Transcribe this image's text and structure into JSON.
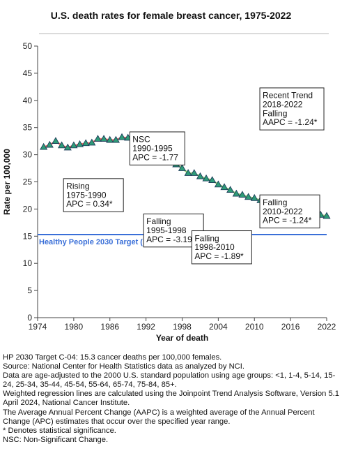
{
  "title": "U.S. death rates for female breast cancer, 1975-2022",
  "chart_data": {
    "type": "line",
    "title": "U.S. death rates for female breast cancer, 1975-2022",
    "xlabel": "Year of death",
    "ylabel": "Rate per 100,000",
    "xlim": [
      1974,
      2022
    ],
    "ylim": [
      0,
      50
    ],
    "xticks": [
      1974,
      1980,
      1986,
      1992,
      1998,
      2004,
      2010,
      2016,
      2022
    ],
    "yticks": [
      0,
      5,
      10,
      15,
      20,
      25,
      30,
      35,
      40,
      45,
      50
    ],
    "grid": false,
    "colors": {
      "marker_fill": "#2e9c78",
      "marker_stroke": "#1e3c5a",
      "target_line": "#3a6fd8",
      "segment_rising": "#e8675a",
      "segment_nsc": "#d8a3c8",
      "segment_falling": "#8ccf6a"
    },
    "series": [
      {
        "x": [
          1975,
          1976,
          1977,
          1978,
          1979,
          1980,
          1981,
          1982,
          1983,
          1984,
          1985,
          1986,
          1987,
          1988,
          1989,
          1990,
          1991,
          1992,
          1993,
          1994,
          1995,
          1996,
          1997,
          1998,
          1999,
          2000,
          2001,
          2002,
          2003,
          2004,
          2005,
          2006,
          2007,
          2008,
          2009,
          2010,
          2011,
          2012,
          2013,
          2014,
          2015,
          2016,
          2017,
          2018,
          2019,
          2020,
          2021,
          2022
        ],
        "values": [
          31.4,
          31.8,
          32.5,
          31.7,
          31.3,
          31.7,
          31.9,
          32.1,
          32.2,
          32.9,
          32.9,
          32.7,
          32.7,
          33.2,
          33.1,
          33.1,
          32.7,
          32.0,
          31.4,
          30.9,
          30.4,
          29.5,
          28.2,
          27.5,
          26.6,
          26.6,
          26.0,
          25.6,
          25.3,
          24.5,
          24.0,
          23.5,
          22.8,
          22.6,
          22.2,
          22.0,
          21.6,
          21.3,
          20.8,
          20.6,
          20.3,
          20.1,
          19.9,
          19.6,
          19.3,
          19.1,
          18.9,
          18.7
        ]
      }
    ],
    "trend_segments": [
      {
        "start": 1975,
        "end": 1990,
        "color": "#e8675a"
      },
      {
        "start": 1990,
        "end": 1995,
        "color": "#d8a3c8"
      },
      {
        "start": 1995,
        "end": 2022,
        "color": "#8ccf6a"
      }
    ],
    "target_line": {
      "value": 15.3,
      "label": "Healthy People 2030 Target (15.3)"
    },
    "annotations": [
      {
        "lines": [
          "Rising",
          "1975-1990",
          "APC =  0.34*"
        ],
        "year": 1978.3,
        "rate": 25.6
      },
      {
        "lines": [
          "NSC",
          "1990-1995",
          "APC = -1.77"
        ],
        "year": 1989.3,
        "rate": 34.2
      },
      {
        "lines": [
          "Falling",
          "1995-1998",
          "APC = -3.19*"
        ],
        "year": 1991.6,
        "rate": 19.1
      },
      {
        "lines": [
          "Falling",
          "1998-2010",
          "APC = -1.89*"
        ],
        "year": 1999.6,
        "rate": 16.0
      },
      {
        "lines": [
          "Falling",
          "2010-2022",
          "APC = -1.24*"
        ],
        "year": 2010.9,
        "rate": 22.6
      },
      {
        "lines": [
          "Recent Trend",
          "2018-2022",
          "Falling",
          "AAPC = -1.24*"
        ],
        "year": 2010.9,
        "rate": 42.3
      }
    ]
  },
  "footnotes": [
    "HP 2030 Target C-04: 15.3 cancer deaths per 100,000 females.",
    "Source: National Center for Health Statistics data as analyzed by NCI.",
    "Data are age-adjusted to the 2000 U.S. standard population using age groups: <1, 1-4, 5-14, 15-24, 25-34, 35-44, 45-54, 55-64, 65-74, 75-84, 85+.",
    "Weighted regression lines are calculated using the Joinpoint Trend Analysis Software, Version 5.1 April 2024, National Cancer Institute.",
    "The Average Annual Percent Change (AAPC) is a weighted average of the Annual Percent Change (APC) estimates that occur over the specified year range.",
    "* Denotes statistical significance.",
    "NSC: Non-Significant Change."
  ]
}
